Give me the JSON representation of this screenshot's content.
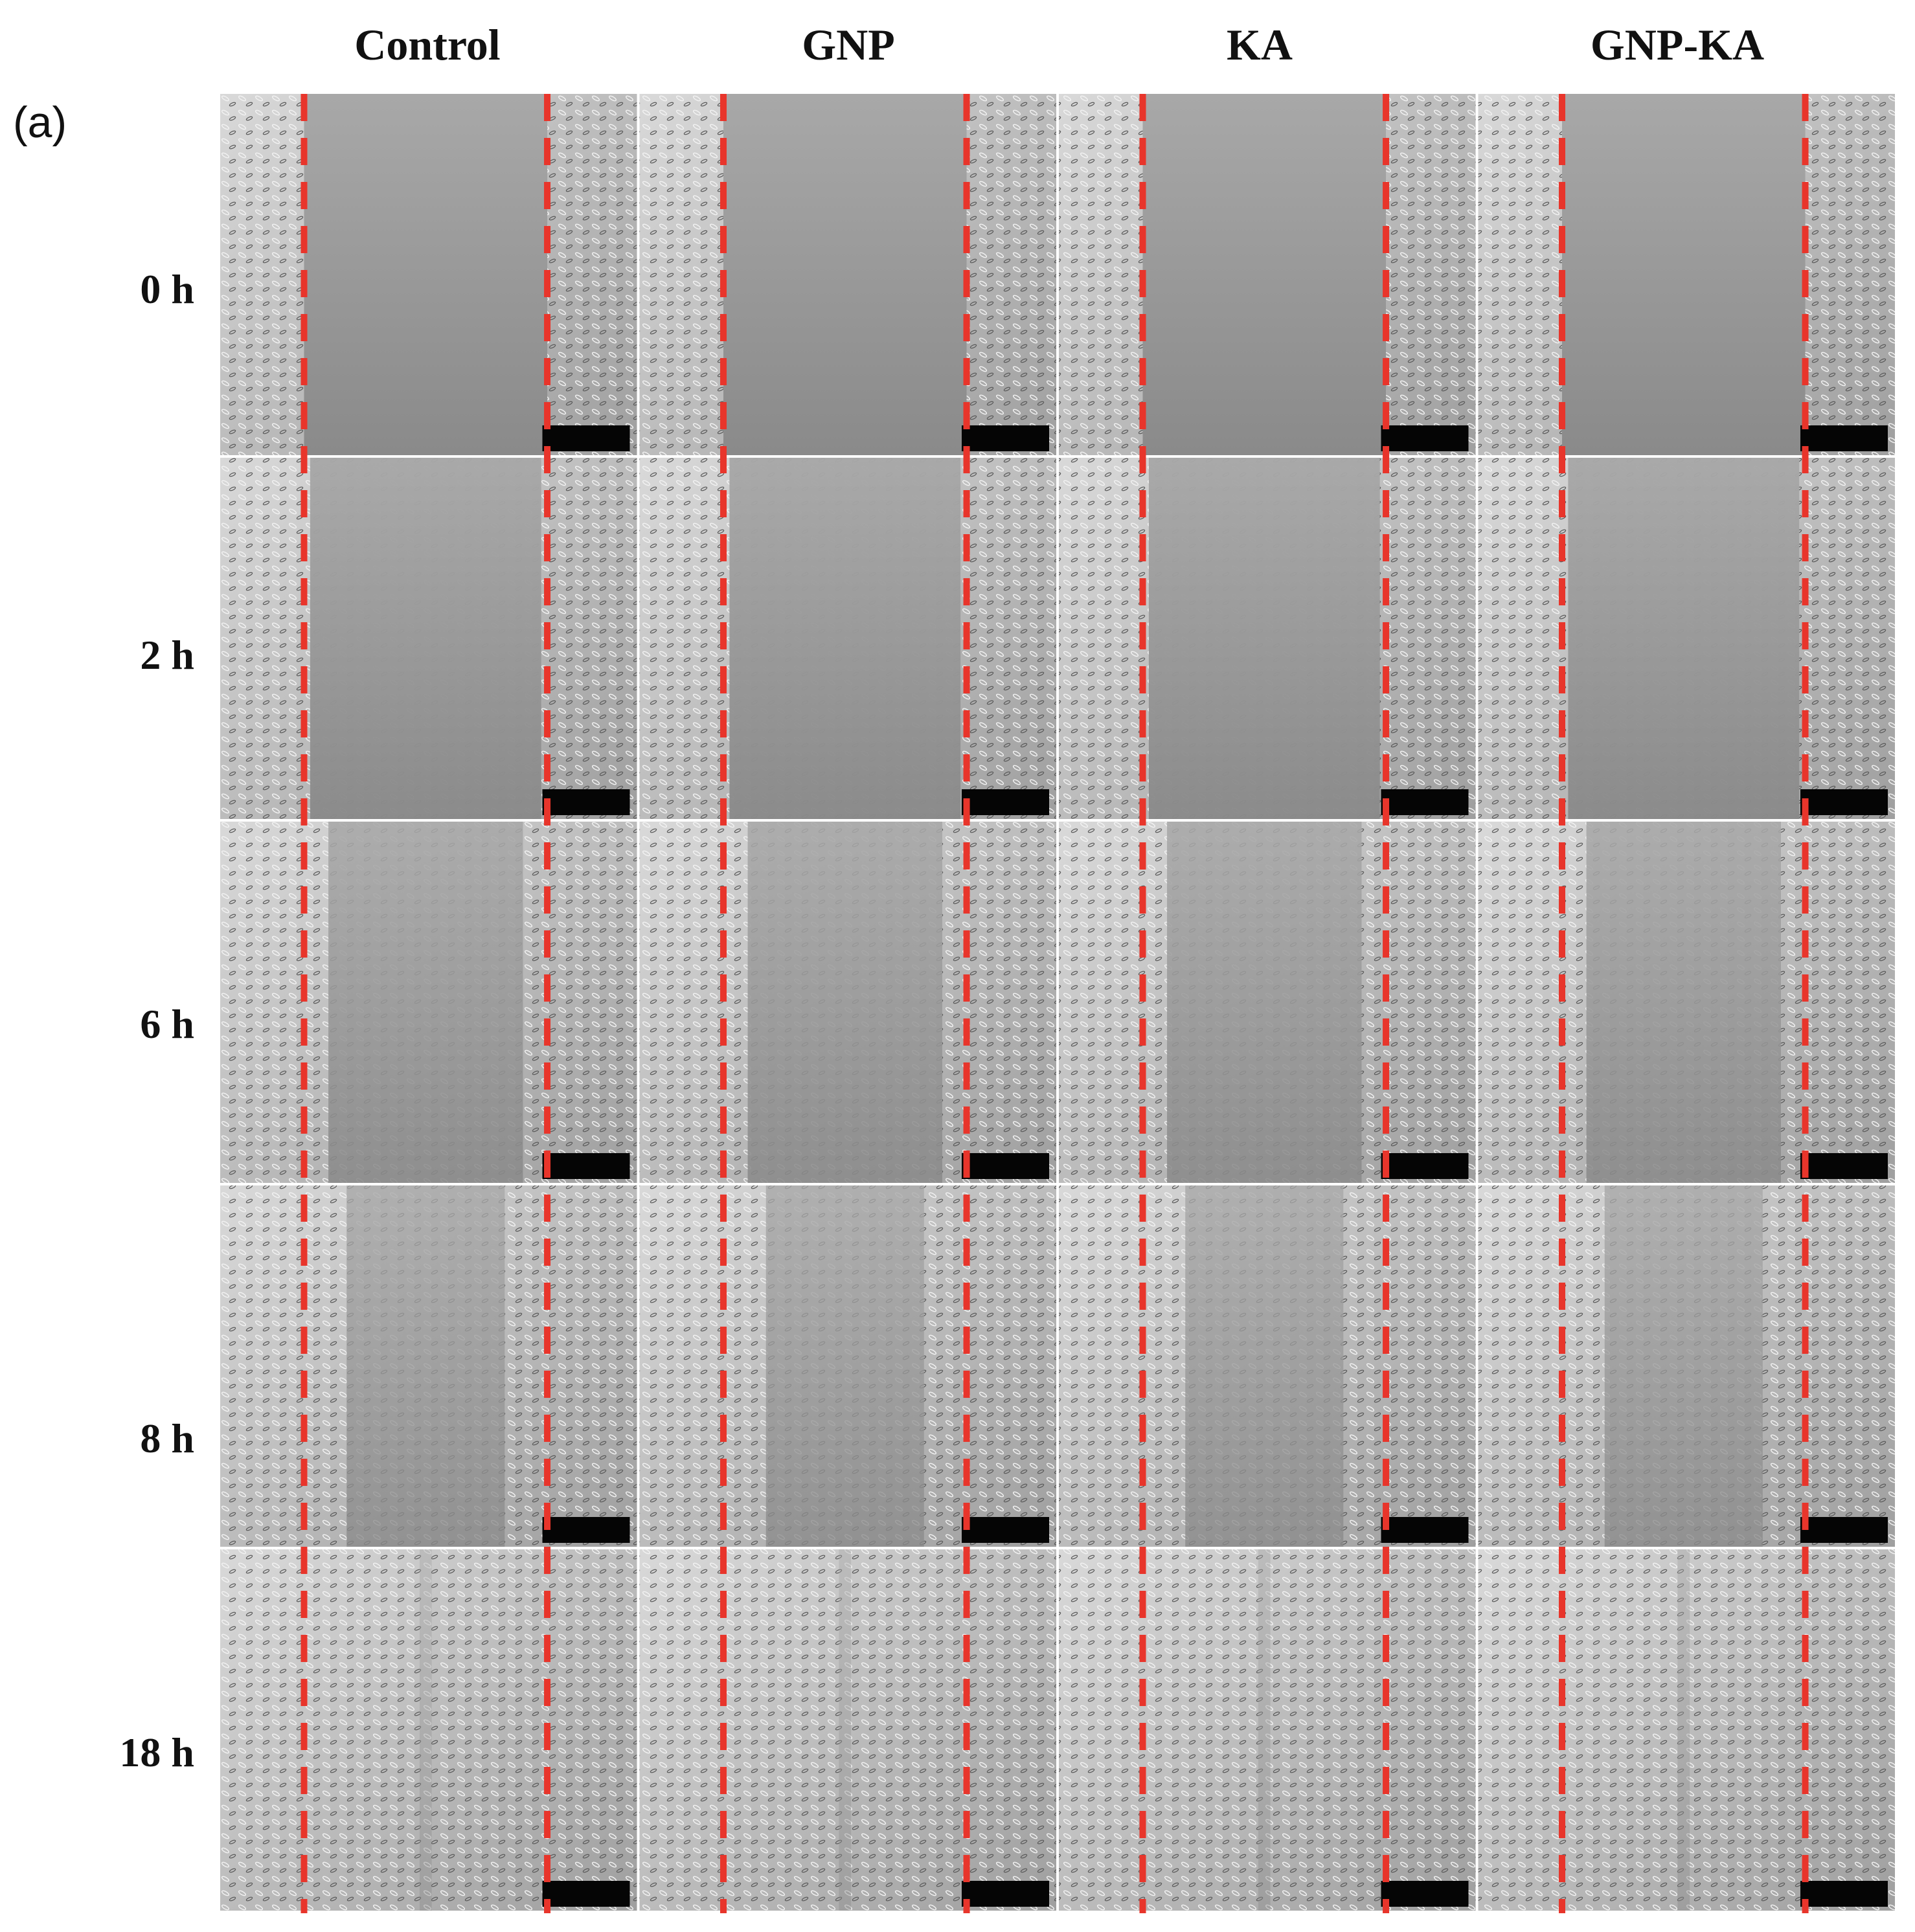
{
  "panel_label": "(a)",
  "columns": [
    "Control",
    "GNP",
    "KA",
    "GNP-KA"
  ],
  "rows": [
    "0 h",
    "2 h",
    "6 h",
    "8 h",
    "18 h"
  ],
  "colors": {
    "wound_edge_line": "#e8352b",
    "scale_bar": "#050505"
  },
  "figure_content": "phase-contrast micrographs of cell scratch (wound healing) assay with red dashed lines marking initial wound edges"
}
